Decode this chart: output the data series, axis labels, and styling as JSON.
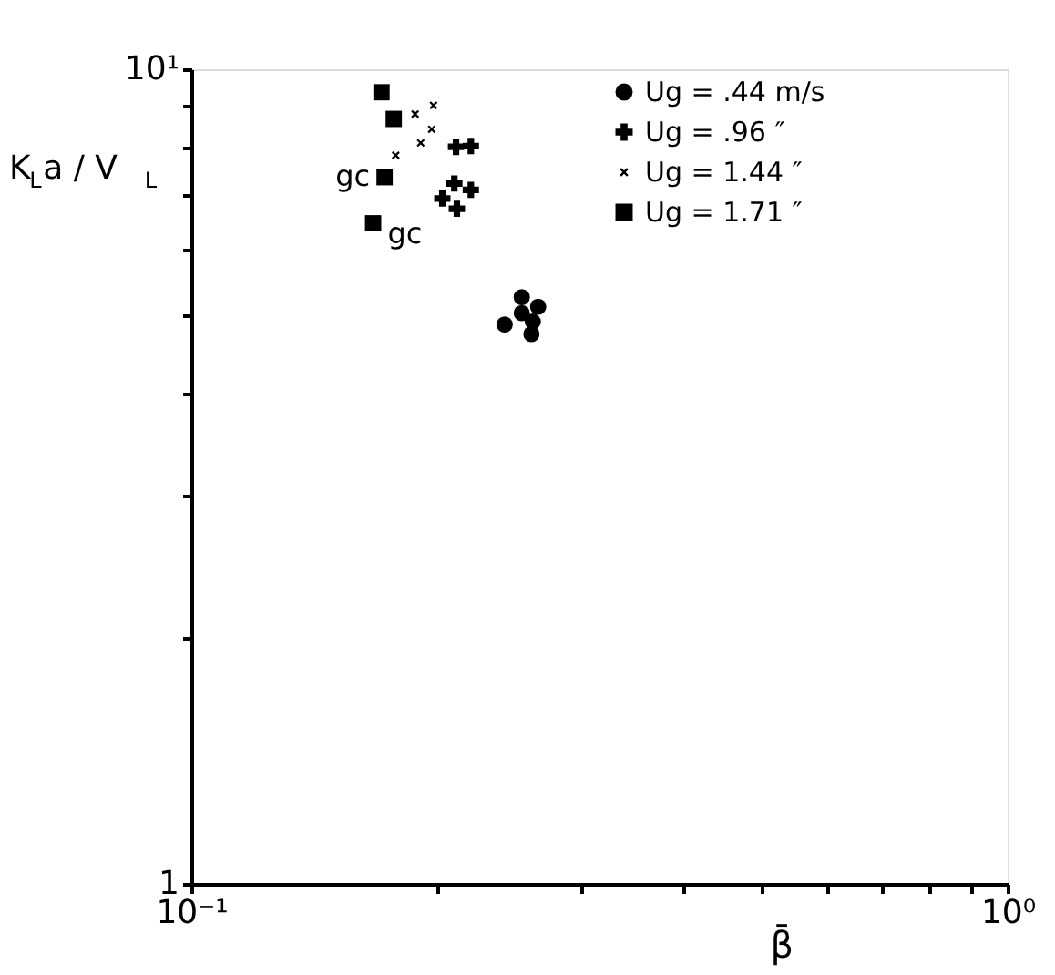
{
  "chart_data": {
    "type": "scatter",
    "xlabel": "β̄",
    "ylabel": "K$_{L}$a / V$_{L}$",
    "log": "xy",
    "xlim": [
      0.1,
      1
    ],
    "ylim": [
      1,
      10
    ],
    "xticks": [
      {
        "value": 0.1,
        "label": "10⁻¹"
      },
      {
        "value": 0.2,
        "label": null
      },
      {
        "value": 0.3,
        "label": null
      },
      {
        "value": 0.4,
        "label": null
      },
      {
        "value": 0.5,
        "label": null
      },
      {
        "value": 0.6,
        "label": null
      },
      {
        "value": 0.7,
        "label": null
      },
      {
        "value": 0.8,
        "label": null
      },
      {
        "value": 0.9,
        "label": null
      },
      {
        "value": 1,
        "label": "10⁰"
      }
    ],
    "yticks": [
      1,
      {
        "value": 2,
        "label": null
      },
      {
        "value": 3,
        "label": null
      },
      {
        "value": 4,
        "label": null
      },
      {
        "value": 5,
        "label": null
      },
      {
        "value": 6,
        "label": null
      },
      {
        "value": 7,
        "label": null
      },
      {
        "value": 8,
        "label": null
      },
      {
        "value": 9,
        "label": null
      },
      {
        "value": 10,
        "label": "10¹"
      }
    ],
    "grid": false,
    "legend": "top right",
    "series": [
      {
        "name": "Ug = .44 m/s",
        "color": "#000000",
        "marker": "circle",
        "x": [
          0.242,
          0.254,
          0.266,
          0.254,
          0.262,
          0.261
        ],
        "values": [
          4.86,
          5.25,
          5.11,
          5.02,
          4.9,
          4.73
        ]
      },
      {
        "name": "Ug = .96 ″",
        "color": "#000000",
        "marker": "cross",
        "x": [
          0.211,
          0.22,
          0.21,
          0.22,
          0.203,
          0.2115
        ],
        "values": [
          8.03,
          8.05,
          7.24,
          7.11,
          6.94,
          6.74
        ]
      },
      {
        "name": "Ug = 1.44 ″",
        "color": "#000000",
        "marker": "x",
        "x": [
          0.188,
          0.198,
          0.197,
          0.191,
          0.178
        ],
        "values": [
          8.81,
          9.03,
          8.44,
          8.12,
          7.84
        ]
      },
      {
        "name": "Ug = 1.71 ″",
        "color": "#000000",
        "marker": "square",
        "x": [
          0.171,
          0.177,
          0.1725,
          0.167
        ],
        "values": [
          9.37,
          8.69,
          7.37,
          6.47
        ]
      }
    ],
    "annotations": [
      {
        "text": "gc",
        "x": 0.1725,
        "y": 7.37
      },
      {
        "text": "gc",
        "x": 0.167,
        "y": 6.47
      }
    ]
  }
}
